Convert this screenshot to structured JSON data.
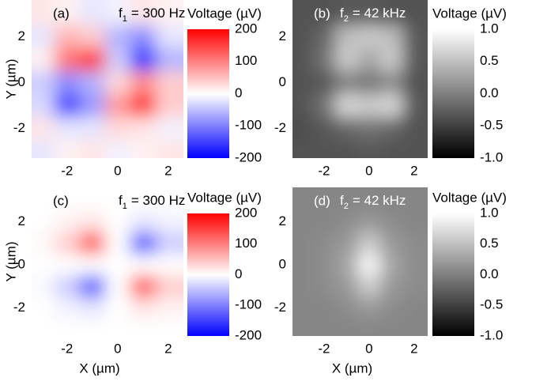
{
  "chart_data": [
    {
      "type": "heatmap",
      "panel_label": "(a)",
      "label_color": "#000000",
      "frequency": {
        "symbol": "f",
        "subscript": "1",
        "text": "= 300 Hz"
      },
      "y_label": "Y (µm)",
      "x": [
        -3,
        -2,
        -1,
        0,
        1,
        2
      ],
      "y": [
        3,
        2,
        1,
        0,
        -1,
        -2,
        -3
      ],
      "z": [
        [
          20,
          10,
          -20,
          -10,
          20,
          10
        ],
        [
          -20,
          60,
          40,
          -60,
          -90,
          -20
        ],
        [
          10,
          110,
          170,
          -40,
          -170,
          -60
        ],
        [
          -40,
          -90,
          -60,
          30,
          90,
          40
        ],
        [
          -30,
          -150,
          -80,
          80,
          170,
          40
        ],
        [
          20,
          -20,
          -20,
          30,
          20,
          -10
        ],
        [
          -20,
          10,
          20,
          -10,
          10,
          20
        ]
      ],
      "xlim": [
        -3.4,
        2.6
      ],
      "ylim": [
        -3.3,
        3.6
      ],
      "xticks": [
        -2,
        0,
        2
      ],
      "yticks": [
        -2,
        0,
        2
      ],
      "colorbar_title": "Voltage (µV)",
      "colors": [
        "#0000ff",
        "#ffffff",
        "#ff0000"
      ],
      "zlim": [
        -200,
        200
      ],
      "zticks": [
        200,
        100,
        0,
        -100,
        -200
      ]
    },
    {
      "type": "heatmap",
      "panel_label": "(b)",
      "label_color": "#ffffff",
      "frequency": {
        "symbol": "f",
        "subscript": "2",
        "text": "= 42 kHz"
      },
      "x": [
        -3,
        -2,
        -1,
        0,
        1,
        2
      ],
      "y": [
        3,
        2,
        1,
        0,
        -1,
        -2,
        -3
      ],
      "z": [
        [
          -0.35,
          -0.35,
          -0.3,
          -0.3,
          -0.35,
          -0.35
        ],
        [
          -0.35,
          -0.2,
          0.5,
          0.6,
          0.5,
          -0.3
        ],
        [
          -0.35,
          -0.1,
          0.6,
          0.3,
          0.6,
          -0.3
        ],
        [
          -0.35,
          -0.3,
          0.0,
          -0.1,
          0.1,
          -0.35
        ],
        [
          -0.35,
          -0.1,
          0.7,
          0.6,
          0.7,
          -0.3
        ],
        [
          -0.4,
          -0.3,
          -0.2,
          -0.1,
          -0.2,
          -0.35
        ],
        [
          -0.35,
          -0.35,
          -0.35,
          -0.3,
          -0.35,
          -0.35
        ]
      ],
      "xlim": [
        -3.4,
        2.6
      ],
      "ylim": [
        -3.3,
        3.6
      ],
      "xticks": [
        -2,
        0,
        2
      ],
      "yticks": [
        -2,
        0,
        2
      ],
      "colorbar_title": "Voltage (µV)",
      "colors": [
        "#000000",
        "#ffffff"
      ],
      "zlim": [
        -1,
        1
      ],
      "zticks": [
        {
          "value": 1,
          "label": "1.0"
        },
        0.5,
        {
          "value": 0,
          "label": "0.0"
        },
        -0.5,
        {
          "value": -1,
          "label": "-1.0"
        }
      ]
    },
    {
      "type": "heatmap",
      "panel_label": "(c)",
      "label_color": "#000000",
      "frequency": {
        "symbol": "f",
        "subscript": "1",
        "text": "= 300 Hz"
      },
      "y_label": "Y (µm)",
      "x_label": "X (µm)",
      "x": [
        -3,
        -2,
        -1,
        0,
        1,
        2
      ],
      "y": [
        3,
        2,
        1,
        0,
        -1,
        -2,
        -3
      ],
      "z": [
        [
          0,
          0,
          0,
          0,
          0,
          0
        ],
        [
          0,
          10,
          20,
          0,
          -20,
          -10
        ],
        [
          5,
          40,
          140,
          0,
          -140,
          -40
        ],
        [
          0,
          0,
          0,
          0,
          0,
          0
        ],
        [
          -5,
          -40,
          -140,
          0,
          140,
          40
        ],
        [
          0,
          -10,
          -20,
          0,
          20,
          10
        ],
        [
          0,
          0,
          0,
          0,
          0,
          0
        ]
      ],
      "xlim": [
        -3.4,
        2.6
      ],
      "ylim": [
        -3.3,
        3.6
      ],
      "xticks": [
        -2,
        0,
        2
      ],
      "yticks": [
        -2,
        0,
        2
      ],
      "colorbar_title": "Voltage (µV)",
      "colors": [
        "#0000ff",
        "#ffffff",
        "#ff0000"
      ],
      "zlim": [
        -200,
        200
      ],
      "zticks": [
        200,
        100,
        0,
        -100,
        -200
      ]
    },
    {
      "type": "heatmap",
      "panel_label": "(d)",
      "label_color": "#ffffff",
      "frequency": {
        "symbol": "f",
        "subscript": "2",
        "text": "= 42 kHz"
      },
      "x_label": "X (µm)",
      "x": [
        -3,
        -2,
        -1,
        0,
        1,
        2
      ],
      "y": [
        3,
        2,
        1,
        0,
        -1,
        -2,
        -3
      ],
      "z": [
        [
          0.05,
          0.05,
          0.05,
          0.05,
          0.05,
          0.05
        ],
        [
          0.05,
          0.05,
          0.1,
          0.2,
          0.1,
          0.05
        ],
        [
          0.05,
          0.1,
          0.2,
          0.6,
          0.2,
          0.1
        ],
        [
          0.05,
          0.1,
          0.3,
          0.95,
          0.3,
          0.1
        ],
        [
          0.05,
          0.1,
          0.2,
          0.6,
          0.2,
          0.1
        ],
        [
          0.05,
          0.05,
          0.1,
          0.2,
          0.1,
          0.05
        ],
        [
          0.05,
          0.05,
          0.05,
          0.05,
          0.05,
          0.05
        ]
      ],
      "xlim": [
        -3.4,
        2.6
      ],
      "ylim": [
        -3.3,
        3.6
      ],
      "xticks": [
        -2,
        0,
        2
      ],
      "yticks": [
        -2,
        0,
        2
      ],
      "colorbar_title": "Voltage (µV)",
      "colors": [
        "#000000",
        "#ffffff"
      ],
      "zlim": [
        -1,
        1
      ],
      "zticks": [
        {
          "value": 1,
          "label": "1.0"
        },
        0.5,
        {
          "value": 0,
          "label": "0.0"
        },
        -0.5,
        {
          "value": -1,
          "label": "-1.0"
        }
      ]
    }
  ]
}
